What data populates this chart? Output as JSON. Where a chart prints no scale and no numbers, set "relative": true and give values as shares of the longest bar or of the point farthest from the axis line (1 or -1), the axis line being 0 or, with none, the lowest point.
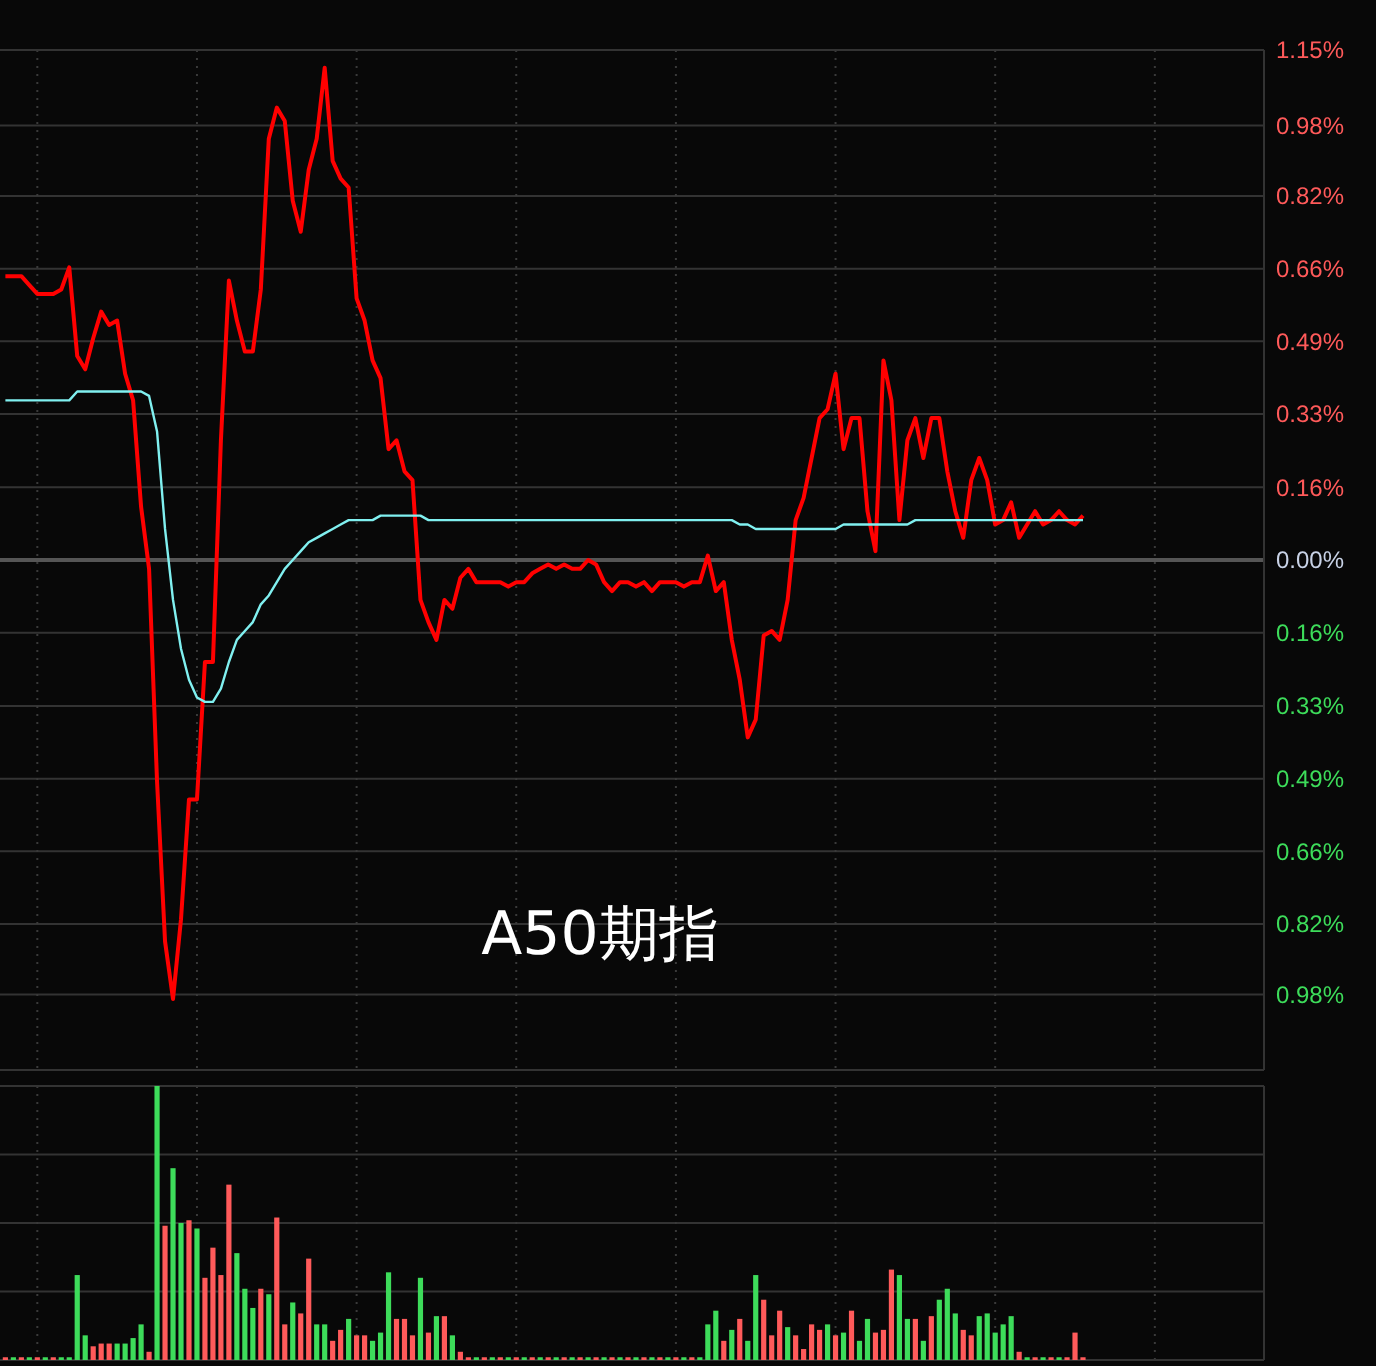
{
  "chart_data": [
    {
      "type": "line",
      "categories": [
        null,
        null,
        null,
        null,
        null,
        null,
        null,
        null,
        null,
        null,
        null,
        null,
        null,
        null,
        null,
        null,
        null,
        null,
        null,
        null,
        null,
        null,
        null,
        null,
        null,
        null,
        null,
        null,
        null,
        null,
        null,
        null,
        null,
        null,
        null,
        null,
        null,
        null,
        null,
        null,
        null,
        null,
        null,
        null,
        null,
        null,
        null,
        null,
        null,
        null,
        null,
        null,
        null,
        null,
        null,
        null,
        null,
        null,
        null,
        null,
        null,
        null,
        null,
        null,
        null,
        null,
        null,
        null,
        null,
        null,
        null,
        null,
        null,
        null,
        null,
        null,
        null,
        null,
        null,
        null,
        null,
        null,
        null,
        null,
        null,
        null,
        null,
        null,
        null,
        null,
        null,
        null,
        null,
        null,
        null,
        null,
        null,
        null,
        null,
        null,
        null,
        null,
        null,
        null,
        null,
        null,
        null,
        null,
        null,
        null,
        null,
        null,
        null,
        null,
        null,
        null,
        null,
        null,
        null,
        null,
        null,
        null,
        null,
        null,
        null,
        null,
        null,
        null,
        null,
        null,
        null,
        null,
        null,
        null,
        null,
        null,
        null,
        null,
        null,
        null,
        null,
        null,
        null,
        null,
        null,
        null,
        null,
        null,
        null,
        null,
        null,
        null,
        null,
        null,
        null,
        null,
        null,
        null
      ],
      "series": [
        {
          "color": "#ff0000",
          "values": [
            0.64,
            0.64,
            0.64,
            0.62,
            0.6,
            0.6,
            0.6,
            0.61,
            0.66,
            0.46,
            0.43,
            0.5,
            0.56,
            0.53,
            0.54,
            0.42,
            0.36,
            0.12,
            -0.02,
            -0.5,
            -0.86,
            -0.99,
            -0.81,
            -0.54,
            -0.54,
            -0.23,
            -0.23,
            0.27,
            0.63,
            0.54,
            0.47,
            0.47,
            0.61,
            0.95,
            1.02,
            0.99,
            0.81,
            0.74,
            0.88,
            0.95,
            1.11,
            0.9,
            0.86,
            0.84,
            0.59,
            0.54,
            0.45,
            0.41,
            0.25,
            0.27,
            0.2,
            0.18,
            -0.09,
            -0.14,
            -0.18,
            -0.09,
            -0.11,
            -0.04,
            -0.02,
            -0.05,
            -0.05,
            -0.05,
            -0.05,
            -0.06,
            -0.05,
            -0.05,
            -0.03,
            -0.02,
            -0.01,
            -0.02,
            -0.01,
            -0.02,
            -0.02,
            0.0,
            -0.01,
            -0.05,
            -0.07,
            -0.05,
            -0.05,
            -0.06,
            -0.05,
            -0.07,
            -0.05,
            -0.05,
            -0.05,
            -0.06,
            -0.05,
            -0.05,
            0.01,
            -0.07,
            -0.05,
            -0.18,
            -0.27,
            -0.4,
            -0.36,
            -0.17,
            -0.16,
            -0.18,
            -0.09,
            0.09,
            0.14,
            0.23,
            0.32,
            0.34,
            0.42,
            0.25,
            0.32,
            0.32,
            0.11,
            0.02,
            0.45,
            0.36,
            0.09,
            0.27,
            0.32,
            0.23,
            0.32,
            0.32,
            0.2,
            0.11,
            0.05,
            0.18,
            0.23,
            0.18,
            0.08,
            0.09,
            0.13,
            0.05,
            0.08,
            0.11,
            0.08,
            0.09,
            0.11,
            0.09,
            0.08,
            0.1,
            null,
            null,
            null,
            null,
            null,
            null,
            null,
            null,
            null,
            null,
            null,
            null,
            null,
            null,
            null,
            null,
            null,
            null,
            null,
            null,
            null,
            null
          ]
        },
        {
          "color": "#80f0f0",
          "values": [
            0.36,
            0.36,
            0.36,
            0.36,
            0.36,
            0.36,
            0.36,
            0.36,
            0.36,
            0.38,
            0.38,
            0.38,
            0.38,
            0.38,
            0.38,
            0.38,
            0.38,
            0.38,
            0.37,
            0.29,
            0.07,
            -0.09,
            -0.2,
            -0.27,
            -0.31,
            -0.32,
            -0.32,
            -0.29,
            -0.23,
            -0.18,
            -0.16,
            -0.14,
            -0.1,
            -0.08,
            -0.05,
            -0.02,
            0.0,
            0.02,
            0.04,
            0.05,
            0.06,
            0.07,
            0.08,
            0.09,
            0.09,
            0.09,
            0.09,
            0.1,
            0.1,
            0.1,
            0.1,
            0.1,
            0.1,
            0.09,
            0.09,
            0.09,
            0.09,
            0.09,
            0.09,
            0.09,
            0.09,
            0.09,
            0.09,
            0.09,
            0.09,
            0.09,
            0.09,
            0.09,
            0.09,
            0.09,
            0.09,
            0.09,
            0.09,
            0.09,
            0.09,
            0.09,
            0.09,
            0.09,
            0.09,
            0.09,
            0.09,
            0.09,
            0.09,
            0.09,
            0.09,
            0.09,
            0.09,
            0.09,
            0.09,
            0.09,
            0.09,
            0.09,
            0.08,
            0.08,
            0.07,
            0.07,
            0.07,
            0.07,
            0.07,
            0.07,
            0.07,
            0.07,
            0.07,
            0.07,
            0.07,
            0.08,
            0.08,
            0.08,
            0.08,
            0.08,
            0.08,
            0.08,
            0.08,
            0.08,
            0.09,
            0.09,
            0.09,
            0.09,
            0.09,
            0.09,
            0.09,
            0.09,
            0.09,
            0.09,
            0.09,
            0.09,
            0.09,
            0.09,
            0.09,
            0.09,
            0.09,
            0.09,
            0.09,
            0.09,
            0.09,
            0.09,
            null,
            null,
            null,
            null,
            null,
            null,
            null,
            null,
            null,
            null,
            null,
            null,
            null,
            null,
            null,
            null,
            null,
            null,
            null,
            null,
            null,
            null
          ]
        }
      ],
      "ylim": [
        -1.15,
        1.15
      ],
      "yticks": [
        {
          "value": 1.15,
          "label": "1.15%"
        },
        {
          "value": 0.98,
          "label": "0.98%"
        },
        {
          "value": 0.821,
          "label": "0.82%"
        },
        {
          "value": 0.657,
          "label": "0.66%"
        },
        {
          "value": 0.493,
          "label": "0.49%"
        },
        {
          "value": 0.329,
          "label": "0.33%"
        },
        {
          "value": 0.164,
          "label": "0.16%"
        },
        {
          "value": 0,
          "label": "0.00%"
        },
        {
          "value": -0.164,
          "label": "0.16%"
        },
        {
          "value": -0.329,
          "label": "0.33%"
        },
        {
          "value": -0.493,
          "label": "0.49%"
        },
        {
          "value": -0.657,
          "label": "0.66%"
        },
        {
          "value": -0.821,
          "label": "0.82%"
        },
        {
          "value": -0.98,
          "label": "0.98%"
        }
      ],
      "grid": true,
      "annotations": [
        "A50期指"
      ]
    },
    {
      "type": "bar",
      "relative": true,
      "grid": true,
      "categories": [
        null,
        null,
        null,
        null,
        null,
        null,
        null,
        null,
        null,
        null,
        null,
        null,
        null,
        null,
        null,
        null,
        null,
        null,
        null,
        null,
        null,
        null,
        null,
        null,
        null,
        null,
        null,
        null,
        null,
        null,
        null,
        null,
        null,
        null,
        null,
        null,
        null,
        null,
        null,
        null,
        null,
        null,
        null,
        null,
        null,
        null,
        null,
        null,
        null,
        null,
        null,
        null,
        null,
        null,
        null,
        null,
        null,
        null,
        null,
        null,
        null,
        null,
        null,
        null,
        null,
        null,
        null,
        null,
        null,
        null,
        null,
        null,
        null,
        null,
        null,
        null,
        null,
        null,
        null,
        null,
        null,
        null,
        null,
        null,
        null,
        null,
        null,
        null,
        null,
        null,
        null,
        null,
        null,
        null,
        null,
        null,
        null,
        null,
        null,
        null,
        null,
        null,
        null,
        null,
        null,
        null,
        null,
        null,
        null,
        null,
        null,
        null,
        null,
        null,
        null,
        null,
        null,
        null,
        null,
        null,
        null,
        null,
        null,
        null,
        null,
        null,
        null,
        null,
        null,
        null,
        null,
        null,
        null,
        null,
        null,
        null,
        null,
        null,
        null,
        null,
        null,
        null,
        null,
        null,
        null,
        null,
        null,
        null,
        null,
        null,
        null,
        null,
        null,
        null,
        null,
        null,
        null,
        null
      ],
      "values": [
        0.01,
        0.01,
        0.01,
        0.01,
        0.01,
        0.01,
        0.01,
        0.01,
        0.01,
        0.31,
        0.09,
        0.05,
        0.06,
        0.06,
        0.06,
        0.06,
        0.08,
        0.13,
        0.03,
        1.0,
        0.49,
        0.7,
        0.5,
        0.51,
        0.48,
        0.3,
        0.41,
        0.31,
        0.64,
        0.39,
        0.26,
        0.19,
        0.26,
        0.24,
        0.52,
        0.13,
        0.21,
        0.17,
        0.37,
        0.13,
        0.13,
        0.07,
        0.11,
        0.15,
        0.09,
        0.09,
        0.07,
        0.1,
        0.32,
        0.15,
        0.15,
        0.09,
        0.3,
        0.1,
        0.16,
        0.16,
        0.09,
        0.03,
        0.01,
        0.01,
        0.01,
        0.01,
        0.01,
        0.01,
        0.01,
        0.01,
        0.01,
        0.01,
        0.01,
        0.01,
        0.01,
        0.01,
        0.01,
        0.01,
        0.01,
        0.01,
        0.01,
        0.01,
        0.01,
        0.01,
        0.01,
        0.01,
        0.01,
        0.01,
        0.01,
        0.01,
        0.01,
        0.01,
        0.13,
        0.18,
        0.07,
        0.11,
        0.15,
        0.07,
        0.31,
        0.22,
        0.09,
        0.18,
        0.12,
        0.09,
        0.04,
        0.13,
        0.11,
        0.13,
        0.09,
        0.1,
        0.18,
        0.07,
        0.15,
        0.1,
        0.11,
        0.33,
        0.31,
        0.15,
        0.15,
        0.07,
        0.16,
        0.22,
        0.26,
        0.17,
        0.11,
        0.09,
        0.16,
        0.17,
        0.1,
        0.13,
        0.16,
        0.03,
        0.01,
        0.01,
        0.01,
        0.01,
        0.01,
        0.01,
        0.1,
        0.01,
        null,
        null,
        null,
        null,
        null,
        null,
        null,
        null,
        null,
        null,
        null,
        null,
        null,
        null,
        null,
        null,
        null,
        null,
        null,
        null,
        null,
        null
      ],
      "colors": [
        "#ff5a5a",
        "#3ddc5a",
        "#ff5a5a",
        "#3ddc5a",
        "#ff5a5a",
        "#3ddc5a",
        "#ff5a5a",
        "#3ddc5a",
        "#3ddc5a",
        "#3ddc5a",
        "#3ddc5a",
        "#ff5a5a",
        "#ff5a5a",
        "#ff5a5a",
        "#3ddc5a",
        "#3ddc5a",
        "#3ddc5a",
        "#3ddc5a",
        "#ff5a5a",
        "#3ddc5a",
        "#ff5a5a",
        "#3ddc5a",
        "#3ddc5a",
        "#ff5a5a",
        "#3ddc5a",
        "#ff5a5a",
        "#ff5a5a",
        "#ff5a5a",
        "#ff5a5a",
        "#3ddc5a",
        "#3ddc5a",
        "#3ddc5a",
        "#ff5a5a",
        "#3ddc5a",
        "#ff5a5a",
        "#ff5a5a",
        "#3ddc5a",
        "#ff5a5a",
        "#ff5a5a",
        "#3ddc5a",
        "#3ddc5a",
        "#ff5a5a",
        "#ff5a5a",
        "#3ddc5a",
        "#ff5a5a",
        "#ff5a5a",
        "#3ddc5a",
        "#3ddc5a",
        "#3ddc5a",
        "#ff5a5a",
        "#ff5a5a",
        "#ff5a5a",
        "#3ddc5a",
        "#ff5a5a",
        "#3ddc5a",
        "#ff5a5a",
        "#3ddc5a",
        "#ff5a5a",
        "#ff5a5a",
        "#3ddc5a",
        "#ff5a5a",
        "#3ddc5a",
        "#ff5a5a",
        "#3ddc5a",
        "#ff5a5a",
        "#3ddc5a",
        "#ff5a5a",
        "#3ddc5a",
        "#ff5a5a",
        "#3ddc5a",
        "#ff5a5a",
        "#3ddc5a",
        "#ff5a5a",
        "#3ddc5a",
        "#ff5a5a",
        "#3ddc5a",
        "#ff5a5a",
        "#3ddc5a",
        "#ff5a5a",
        "#3ddc5a",
        "#ff5a5a",
        "#3ddc5a",
        "#ff5a5a",
        "#3ddc5a",
        "#ff5a5a",
        "#3ddc5a",
        "#ff5a5a",
        "#3ddc5a",
        "#3ddc5a",
        "#3ddc5a",
        "#ff5a5a",
        "#3ddc5a",
        "#ff5a5a",
        "#3ddc5a",
        "#3ddc5a",
        "#ff5a5a",
        "#ff5a5a",
        "#ff5a5a",
        "#3ddc5a",
        "#ff5a5a",
        "#ff5a5a",
        "#ff5a5a",
        "#ff5a5a",
        "#3ddc5a",
        "#ff5a5a",
        "#3ddc5a",
        "#ff5a5a",
        "#3ddc5a",
        "#3ddc5a",
        "#ff5a5a",
        "#ff5a5a",
        "#ff5a5a",
        "#3ddc5a",
        "#3ddc5a",
        "#ff5a5a",
        "#3ddc5a",
        "#ff5a5a",
        "#3ddc5a",
        "#3ddc5a",
        "#3ddc5a",
        "#ff5a5a",
        "#ff5a5a",
        "#3ddc5a",
        "#3ddc5a",
        "#3ddc5a",
        "#3ddc5a",
        "#3ddc5a",
        "#ff5a5a",
        "#3ddc5a",
        "#ff5a5a",
        "#3ddc5a",
        "#ff5a5a",
        "#3ddc5a",
        "#ff5a5a",
        "#ff5a5a",
        "#ff5a5a",
        null,
        null,
        null,
        null,
        null,
        null,
        null,
        null,
        null,
        null,
        null,
        null,
        null,
        null,
        null,
        null,
        null,
        null,
        null,
        null,
        null,
        null
      ]
    }
  ]
}
